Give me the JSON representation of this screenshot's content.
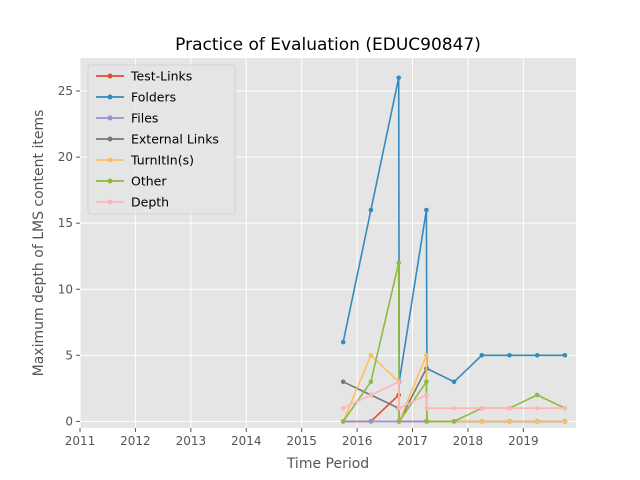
{
  "chart_data": {
    "type": "line",
    "title": "Practice of Evaluation (EDUC90847)",
    "xlabel": "Time Period",
    "ylabel": "Maximum depth of LMS content items",
    "xlim": [
      2011,
      2019.95
    ],
    "ylim": [
      -0.5,
      27.5
    ],
    "x_ticks": [
      "2011",
      "2012",
      "2013",
      "2014",
      "2015",
      "2016",
      "2017",
      "2018",
      "2019"
    ],
    "y_ticks": [
      "0",
      "5",
      "10",
      "15",
      "20",
      "25"
    ],
    "grid": true,
    "legend_position": "upper-left",
    "series": [
      {
        "name": "Test-Links",
        "color": "#E24A33",
        "points": [
          [
            2015.75,
            0
          ],
          [
            2016.25,
            0
          ],
          [
            2016.75,
            2
          ],
          [
            2016.76,
            0
          ],
          [
            2017.25,
            0
          ],
          [
            2017.75,
            0
          ],
          [
            2018.25,
            0
          ],
          [
            2018.75,
            0
          ],
          [
            2019.25,
            0
          ],
          [
            2019.75,
            0
          ]
        ]
      },
      {
        "name": "Folders",
        "color": "#348ABD",
        "points": [
          [
            2015.75,
            6
          ],
          [
            2016.25,
            16
          ],
          [
            2016.75,
            26
          ],
          [
            2016.76,
            3
          ],
          [
            2017.25,
            16
          ],
          [
            2017.26,
            4
          ],
          [
            2017.75,
            3
          ],
          [
            2018.25,
            5
          ],
          [
            2018.75,
            5
          ],
          [
            2019.25,
            5
          ],
          [
            2019.75,
            5
          ]
        ]
      },
      {
        "name": "Files",
        "color": "#988ED5",
        "points": [
          [
            2015.75,
            0
          ],
          [
            2016.25,
            0
          ],
          [
            2016.75,
            0
          ],
          [
            2017.25,
            0
          ],
          [
            2017.75,
            0
          ],
          [
            2018.25,
            0
          ],
          [
            2018.75,
            0
          ],
          [
            2019.25,
            0
          ],
          [
            2019.75,
            0
          ]
        ]
      },
      {
        "name": "External Links",
        "color": "#777777",
        "points": [
          [
            2015.75,
            3
          ],
          [
            2016.25,
            2
          ],
          [
            2016.75,
            1
          ],
          [
            2016.76,
            0
          ],
          [
            2017.25,
            4
          ],
          [
            2017.26,
            0
          ],
          [
            2017.75,
            0
          ],
          [
            2018.25,
            0
          ],
          [
            2018.75,
            0
          ],
          [
            2019.25,
            0
          ],
          [
            2019.75,
            0
          ]
        ]
      },
      {
        "name": "TurnItIn(s)",
        "color": "#FBC15E",
        "points": [
          [
            2015.75,
            0
          ],
          [
            2016.25,
            5
          ],
          [
            2016.75,
            3
          ],
          [
            2016.76,
            0
          ],
          [
            2017.25,
            5
          ],
          [
            2017.26,
            0
          ],
          [
            2017.75,
            0
          ],
          [
            2018.25,
            0
          ],
          [
            2018.75,
            0
          ],
          [
            2019.25,
            0
          ],
          [
            2019.75,
            0
          ]
        ]
      },
      {
        "name": "Other",
        "color": "#8EBA42",
        "points": [
          [
            2015.75,
            0
          ],
          [
            2016.25,
            3
          ],
          [
            2016.75,
            12
          ],
          [
            2016.76,
            0
          ],
          [
            2017.25,
            3
          ],
          [
            2017.26,
            0
          ],
          [
            2017.75,
            0
          ],
          [
            2018.25,
            1
          ],
          [
            2018.75,
            1
          ],
          [
            2019.25,
            2
          ],
          [
            2019.75,
            1
          ]
        ]
      },
      {
        "name": "Depth",
        "color": "#FFB5B8",
        "points": [
          [
            2015.75,
            1
          ],
          [
            2016.25,
            2
          ],
          [
            2016.75,
            3
          ],
          [
            2016.76,
            1
          ],
          [
            2017.25,
            2
          ],
          [
            2017.26,
            1
          ],
          [
            2017.75,
            1
          ],
          [
            2018.25,
            1
          ],
          [
            2018.75,
            1
          ],
          [
            2019.25,
            1
          ],
          [
            2019.75,
            1
          ]
        ]
      }
    ]
  }
}
